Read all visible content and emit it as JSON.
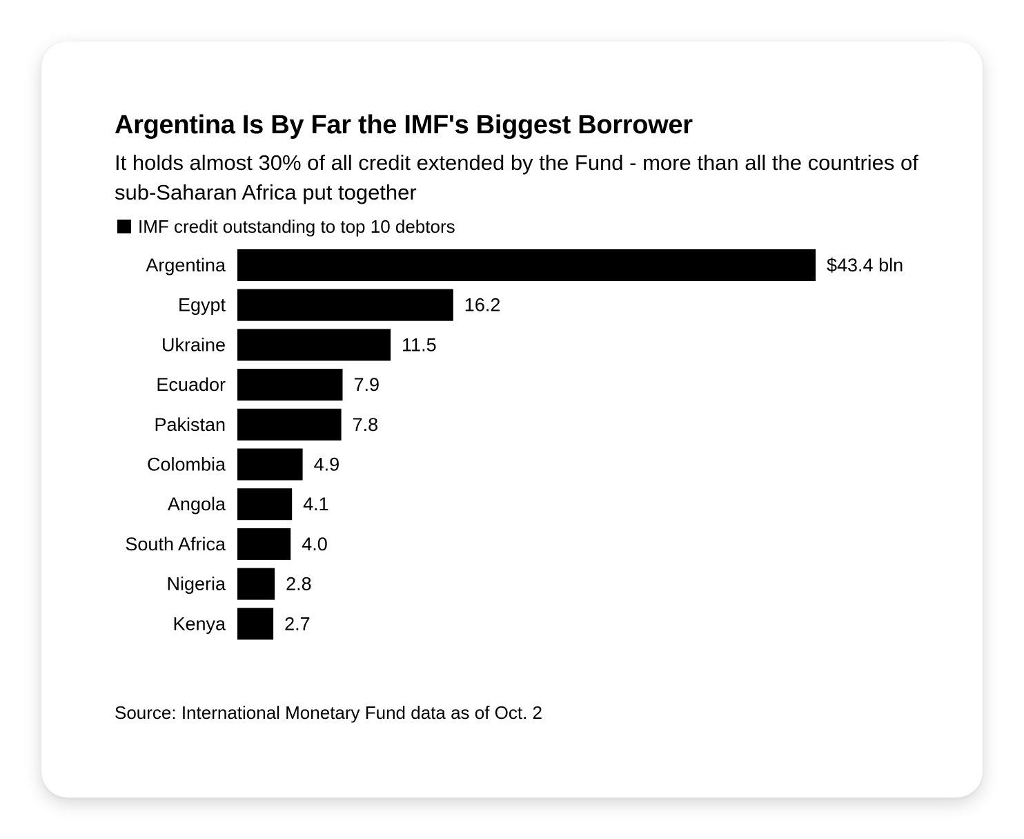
{
  "chart_data": {
    "type": "bar",
    "orientation": "horizontal",
    "title": "Argentina Is By Far the IMF's Biggest Borrower",
    "subtitle": "It holds almost 30% of all credit extended by the Fund - more than all the countries of sub-Saharan Africa put together",
    "categories": [
      "Argentina",
      "Egypt",
      "Ukraine",
      "Ecuador",
      "Pakistan",
      "Colombia",
      "Angola",
      "South Africa",
      "Nigeria",
      "Kenya"
    ],
    "series": [
      {
        "name": "IMF credit outstanding to top 10 debtors",
        "values": [
          43.4,
          16.2,
          11.5,
          7.9,
          7.8,
          4.9,
          4.1,
          4.0,
          2.8,
          2.7
        ],
        "value_labels": [
          "$43.4 bln",
          "16.2",
          "11.5",
          "7.9",
          "7.8",
          "4.9",
          "4.1",
          "4.0",
          "2.8",
          "2.7"
        ],
        "color": "#000000"
      }
    ],
    "xlim": [
      0,
      43.4
    ],
    "grid": false,
    "legend_position": "top-left",
    "source": "Source: International Monetary Fund data as of Oct. 2"
  }
}
